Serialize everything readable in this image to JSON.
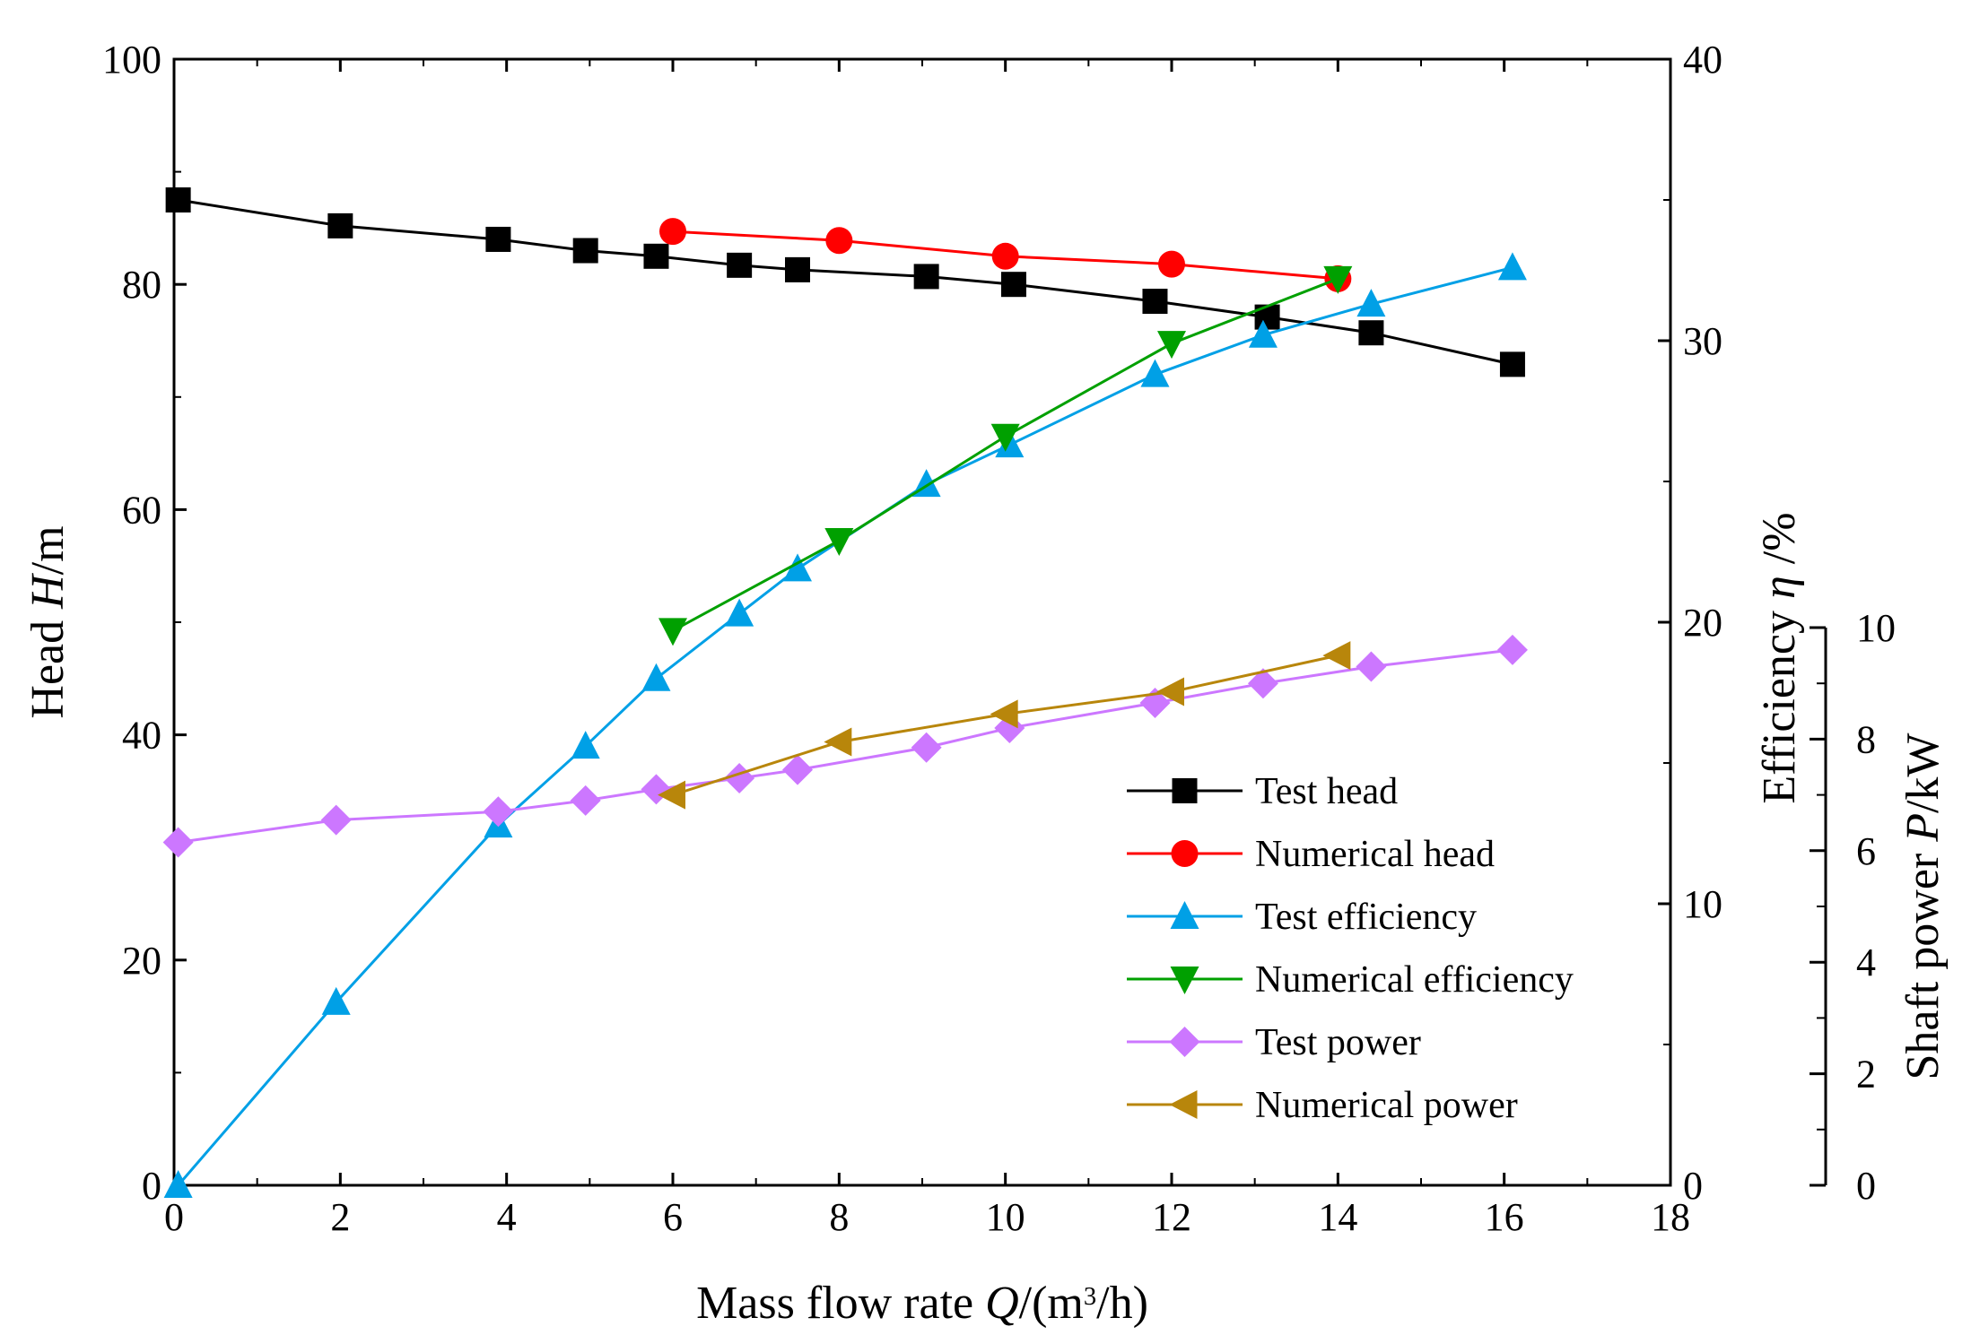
{
  "chart_data": {
    "type": "line",
    "x_axis": {
      "label_prefix": "Mass flow rate ",
      "label_var": "Q",
      "label_mid": "/(m",
      "label_sup": "3",
      "label_suffix": "/h)",
      "range": [
        0,
        18
      ],
      "ticks": [
        "0",
        "2",
        "4",
        "6",
        "8",
        "10",
        "12",
        "14",
        "16",
        "18"
      ]
    },
    "y_axes": {
      "head": {
        "label_prefix": "Head ",
        "label_var": "H",
        "label_suffix": "/m",
        "range": [
          0,
          100
        ],
        "ticks": [
          "0",
          "20",
          "40",
          "60",
          "80",
          "100"
        ]
      },
      "efficiency": {
        "label_prefix": "Efficiency ",
        "label_var": "η",
        "label_suffix": " /%",
        "range": [
          0,
          40
        ],
        "ticks": [
          "0",
          "10",
          "20",
          "30",
          "40"
        ]
      },
      "power": {
        "label_prefix": "Shaft power ",
        "label_var": "P",
        "label_suffix": "/kW",
        "range": [
          0,
          10
        ],
        "ticks": [
          "0",
          "2",
          "4",
          "6",
          "8",
          "10"
        ]
      }
    },
    "series": [
      {
        "name": "Test head",
        "axis": "head",
        "color": "#000000",
        "marker": "square",
        "x": [
          0.05,
          2,
          3.9,
          4.95,
          5.8,
          6.8,
          7.5,
          9.05,
          10.1,
          11.8,
          13.15,
          14.4,
          16.1
        ],
        "y": [
          87.5,
          85.2,
          84,
          83,
          82.5,
          81.7,
          81.3,
          80.7,
          80,
          78.5,
          77.1,
          75.7,
          72.9
        ]
      },
      {
        "name": "Numerical head",
        "axis": "head",
        "color": "#ff0000",
        "marker": "circle",
        "x": [
          6,
          8,
          10,
          12,
          14
        ],
        "y": [
          84.7,
          83.9,
          82.5,
          81.8,
          80.5
        ]
      },
      {
        "name": "Test efficiency",
        "axis": "efficiency",
        "color": "#00a0e6",
        "marker": "triangle-up",
        "x": [
          0.05,
          1.95,
          3.9,
          4.95,
          5.8,
          6.8,
          7.5,
          9.05,
          10.05,
          11.8,
          13.1,
          14.4,
          16.1
        ],
        "y": [
          0,
          6.5,
          12.8,
          15.6,
          18,
          20.3,
          21.9,
          24.9,
          26.3,
          28.8,
          30.2,
          31.3,
          32.6
        ]
      },
      {
        "name": "Numerical efficiency",
        "axis": "efficiency",
        "color": "#00a000",
        "marker": "triangle-down",
        "x": [
          6,
          8,
          10,
          12,
          14
        ],
        "y": [
          19.7,
          22.9,
          26.6,
          29.9,
          32.2
        ]
      },
      {
        "name": "Test power",
        "axis": "power",
        "color": "#cc77ff",
        "marker": "diamond",
        "x": [
          0.05,
          1.95,
          3.9,
          4.95,
          5.8,
          6.8,
          7.5,
          9.05,
          10.05,
          11.8,
          13.1,
          14.4,
          16.1
        ],
        "y": [
          6.15,
          6.55,
          6.7,
          6.9,
          7.1,
          7.3,
          7.45,
          7.85,
          8.2,
          8.65,
          9.0,
          9.3,
          9.6
        ]
      },
      {
        "name": "Numerical power",
        "axis": "power",
        "color": "#b8860b",
        "marker": "triangle-left",
        "x": [
          6,
          8,
          10,
          12,
          14
        ],
        "y": [
          7.0,
          7.95,
          8.45,
          8.85,
          9.5
        ]
      }
    ],
    "legend_position": "bottom-right"
  }
}
